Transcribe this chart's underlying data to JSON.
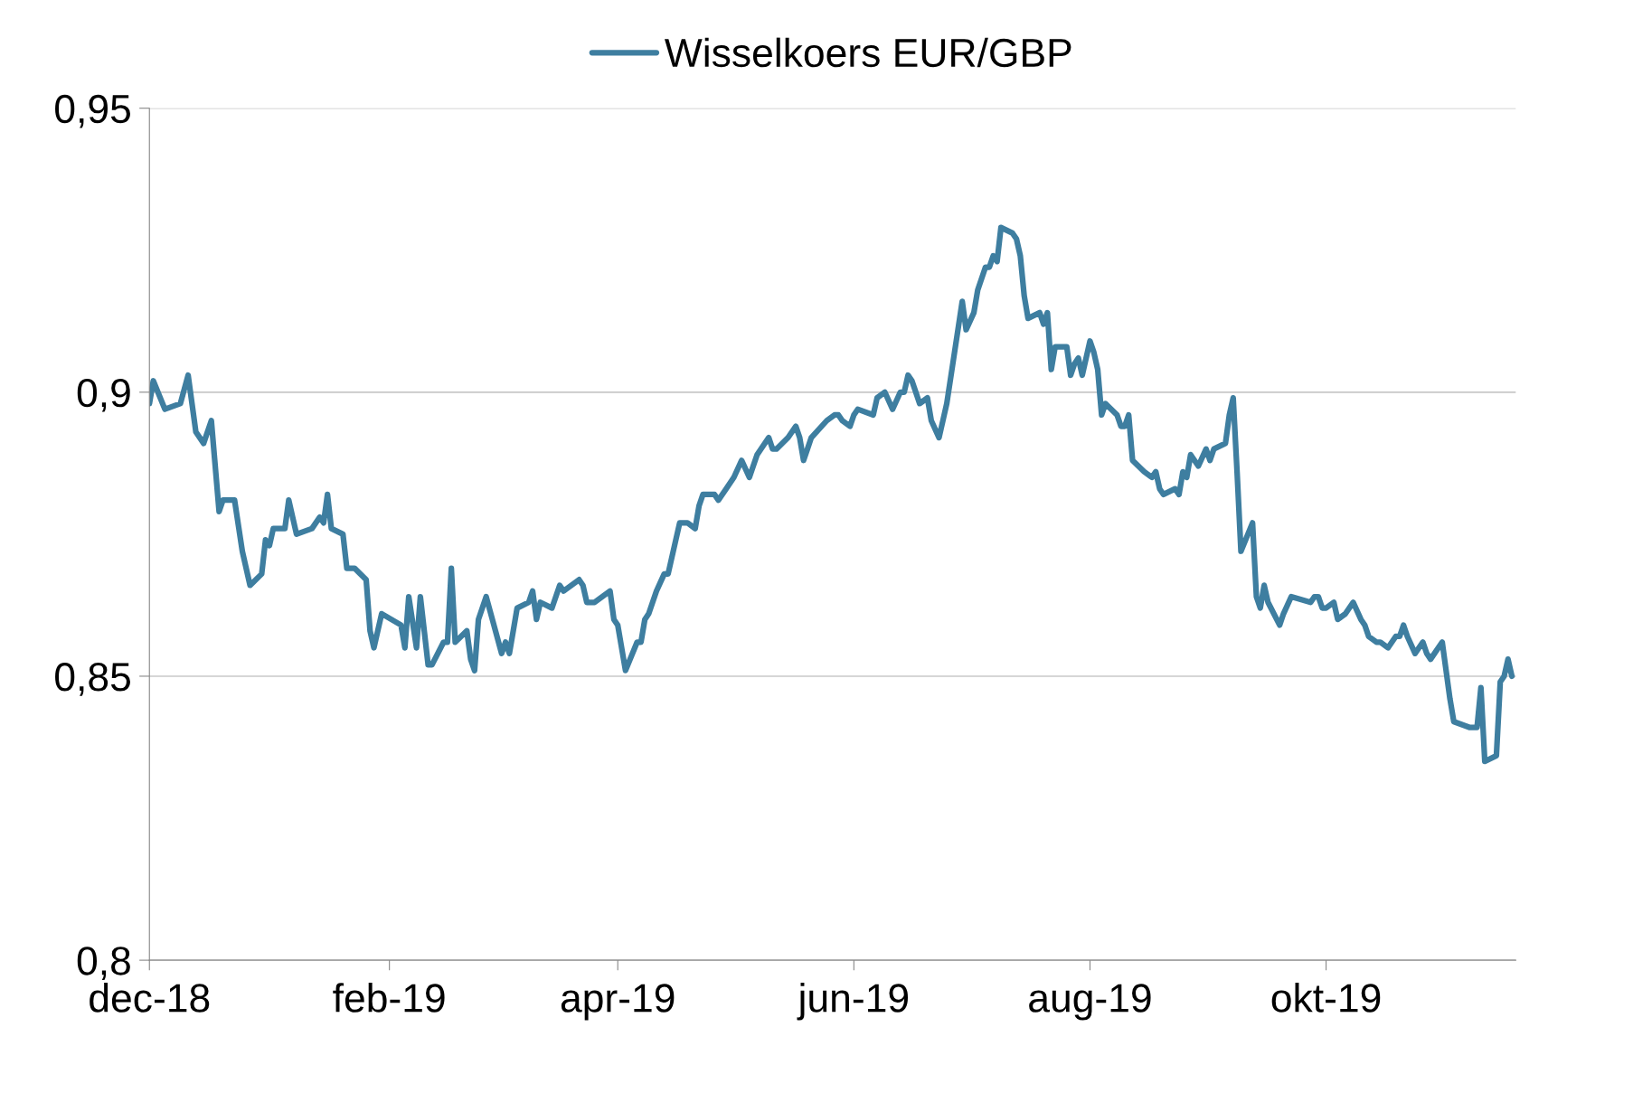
{
  "chart_data": {
    "type": "line",
    "x": [
      "2018-12-01",
      "2018-12-02",
      "2018-12-05",
      "2018-12-09",
      "2018-12-11",
      "2018-12-13",
      "2018-12-15",
      "2018-12-17",
      "2018-12-19",
      "2018-12-20",
      "2018-12-23",
      "2018-12-25",
      "2018-12-27",
      "2018-12-30",
      "2018-12-31",
      "2019-01-01",
      "2019-01-02",
      "2019-01-05",
      "2019-01-06",
      "2019-01-08",
      "2019-01-12",
      "2019-01-14",
      "2019-01-15",
      "2019-01-16",
      "2019-01-17",
      "2019-01-20",
      "2019-01-21",
      "2019-01-23",
      "2019-01-26",
      "2019-01-27",
      "2019-01-28",
      "2019-01-30",
      "2019-02-04",
      "2019-02-05",
      "2019-02-06",
      "2019-02-08",
      "2019-02-09",
      "2019-02-11",
      "2019-02-12",
      "2019-02-15",
      "2019-02-16",
      "2019-02-17",
      "2019-02-18",
      "2019-02-21",
      "2019-02-22",
      "2019-02-23",
      "2019-02-24",
      "2019-02-26",
      "2019-03-02",
      "2019-03-03",
      "2019-03-04",
      "2019-03-05",
      "2019-03-06",
      "2019-03-09",
      "2019-03-10",
      "2019-03-11",
      "2019-03-12",
      "2019-03-15",
      "2019-03-17",
      "2019-03-18",
      "2019-03-22",
      "2019-03-23",
      "2019-03-24",
      "2019-03-26",
      "2019-03-30",
      "2019-03-31",
      "2019-04-01",
      "2019-04-03",
      "2019-04-06",
      "2019-04-07",
      "2019-04-08",
      "2019-04-09",
      "2019-04-11",
      "2019-04-13",
      "2019-04-14",
      "2019-04-16",
      "2019-04-17",
      "2019-04-19",
      "2019-04-21",
      "2019-04-22",
      "2019-04-23",
      "2019-04-26",
      "2019-04-27",
      "2019-04-29",
      "2019-05-01",
      "2019-05-03",
      "2019-05-05",
      "2019-05-07",
      "2019-05-10",
      "2019-05-11",
      "2019-05-12",
      "2019-05-15",
      "2019-05-17",
      "2019-05-18",
      "2019-05-19",
      "2019-05-20",
      "2019-05-21",
      "2019-05-25",
      "2019-05-27",
      "2019-05-28",
      "2019-05-29",
      "2019-05-31",
      "2019-06-01",
      "2019-06-02",
      "2019-06-06",
      "2019-06-07",
      "2019-06-09",
      "2019-06-11",
      "2019-06-13",
      "2019-06-14",
      "2019-06-15",
      "2019-06-16",
      "2019-06-18",
      "2019-06-20",
      "2019-06-21",
      "2019-06-23",
      "2019-06-25",
      "2019-06-27",
      "2019-06-29",
      "2019-06-30",
      "2019-07-02",
      "2019-07-03",
      "2019-07-05",
      "2019-07-06",
      "2019-07-07",
      "2019-07-08",
      "2019-07-09",
      "2019-07-12",
      "2019-07-13",
      "2019-07-14",
      "2019-07-15",
      "2019-07-16",
      "2019-07-19",
      "2019-07-20",
      "2019-07-21",
      "2019-07-22",
      "2019-07-23",
      "2019-07-26",
      "2019-07-27",
      "2019-07-28",
      "2019-07-29",
      "2019-07-30",
      "2019-08-01",
      "2019-08-02",
      "2019-08-03",
      "2019-08-04",
      "2019-08-05",
      "2019-08-08",
      "2019-08-09",
      "2019-08-10",
      "2019-08-11",
      "2019-08-12",
      "2019-08-15",
      "2019-08-17",
      "2019-08-18",
      "2019-08-19",
      "2019-08-20",
      "2019-08-23",
      "2019-08-24",
      "2019-08-25",
      "2019-08-26",
      "2019-08-27",
      "2019-08-29",
      "2019-08-31",
      "2019-09-01",
      "2019-09-02",
      "2019-09-05",
      "2019-09-06",
      "2019-09-07",
      "2019-09-08",
      "2019-09-09",
      "2019-09-12",
      "2019-09-13",
      "2019-09-14",
      "2019-09-15",
      "2019-09-16",
      "2019-09-19",
      "2019-09-20",
      "2019-09-22",
      "2019-09-27",
      "2019-09-28",
      "2019-09-29",
      "2019-09-30",
      "2019-10-01",
      "2019-10-03",
      "2019-10-04",
      "2019-10-06",
      "2019-10-08",
      "2019-10-10",
      "2019-10-11",
      "2019-10-12",
      "2019-10-14",
      "2019-10-15",
      "2019-10-17",
      "2019-10-19",
      "2019-10-20",
      "2019-10-21",
      "2019-10-22",
      "2019-10-24",
      "2019-10-26",
      "2019-10-27",
      "2019-10-28",
      "2019-10-31",
      "2019-11-01",
      "2019-11-02",
      "2019-11-03",
      "2019-11-07",
      "2019-11-09",
      "2019-11-10",
      "2019-11-11",
      "2019-11-14",
      "2019-11-15",
      "2019-11-16",
      "2019-11-17",
      "2019-11-18"
    ],
    "series": [
      {
        "name": "Wisselkoers EUR/GBP",
        "color": "#3e7ea0",
        "values": [
          0.898,
          0.902,
          0.897,
          0.898,
          0.903,
          0.893,
          0.891,
          0.895,
          0.879,
          0.881,
          0.881,
          0.872,
          0.866,
          0.868,
          0.874,
          0.873,
          0.876,
          0.876,
          0.881,
          0.875,
          0.876,
          0.878,
          0.877,
          0.882,
          0.876,
          0.875,
          0.869,
          0.869,
          0.867,
          0.858,
          0.855,
          0.861,
          0.859,
          0.855,
          0.864,
          0.855,
          0.864,
          0.852,
          0.852,
          0.856,
          0.856,
          0.869,
          0.856,
          0.858,
          0.853,
          0.851,
          0.86,
          0.864,
          0.854,
          0.856,
          0.854,
          0.858,
          0.862,
          0.863,
          0.865,
          0.86,
          0.863,
          0.862,
          0.866,
          0.865,
          0.867,
          0.866,
          0.863,
          0.863,
          0.865,
          0.86,
          0.859,
          0.851,
          0.856,
          0.856,
          0.86,
          0.861,
          0.865,
          0.868,
          0.868,
          0.874,
          0.877,
          0.877,
          0.876,
          0.88,
          0.882,
          0.882,
          0.881,
          0.883,
          0.885,
          0.888,
          0.885,
          0.889,
          0.892,
          0.89,
          0.89,
          0.892,
          0.894,
          0.892,
          0.888,
          0.89,
          0.892,
          0.895,
          0.896,
          0.896,
          0.895,
          0.894,
          0.896,
          0.897,
          0.896,
          0.899,
          0.9,
          0.897,
          0.9,
          0.9,
          0.903,
          0.902,
          0.898,
          0.899,
          0.895,
          0.892,
          0.898,
          0.907,
          0.916,
          0.911,
          0.914,
          0.918,
          0.922,
          0.922,
          0.924,
          0.923,
          0.929,
          0.928,
          0.927,
          0.924,
          0.917,
          0.913,
          0.914,
          0.912,
          0.914,
          0.904,
          0.908,
          0.908,
          0.903,
          0.905,
          0.906,
          0.903,
          0.909,
          0.907,
          0.904,
          0.896,
          0.898,
          0.896,
          0.894,
          0.894,
          0.896,
          0.888,
          0.886,
          0.885,
          0.886,
          0.883,
          0.882,
          0.883,
          0.882,
          0.886,
          0.885,
          0.889,
          0.887,
          0.89,
          0.888,
          0.89,
          0.891,
          0.896,
          0.899,
          0.886,
          0.872,
          0.877,
          0.864,
          0.862,
          0.866,
          0.863,
          0.859,
          0.861,
          0.864,
          0.863,
          0.864,
          0.864,
          0.862,
          0.862,
          0.863,
          0.86,
          0.861,
          0.863,
          0.86,
          0.859,
          0.857,
          0.856,
          0.856,
          0.855,
          0.857,
          0.857,
          0.859,
          0.857,
          0.854,
          0.856,
          0.854,
          0.853,
          0.856,
          0.851,
          0.846,
          0.842,
          0.841,
          0.841,
          0.848,
          0.835,
          0.836,
          0.849,
          0.85,
          0.853,
          0.85
        ]
      }
    ],
    "xlim": [
      "2018-12-01",
      "2019-11-19"
    ],
    "xticks": [
      {
        "value": "2018-12-01",
        "label": "dec-18"
      },
      {
        "value": "2019-02-01",
        "label": "feb-19"
      },
      {
        "value": "2019-04-01",
        "label": "apr-19"
      },
      {
        "value": "2019-06-01",
        "label": "jun-19"
      },
      {
        "value": "2019-08-01",
        "label": "aug-19"
      },
      {
        "value": "2019-10-01",
        "label": "okt-19"
      }
    ],
    "ylim": [
      0.8,
      0.95
    ],
    "yticks": [
      {
        "value": 0.8,
        "label": "0,8"
      },
      {
        "value": 0.85,
        "label": "0,85"
      },
      {
        "value": 0.9,
        "label": "0,9"
      },
      {
        "value": 0.95,
        "label": "0,95"
      }
    ],
    "grid": "y",
    "legend": "top",
    "marker": "none",
    "line_style": "solid"
  }
}
